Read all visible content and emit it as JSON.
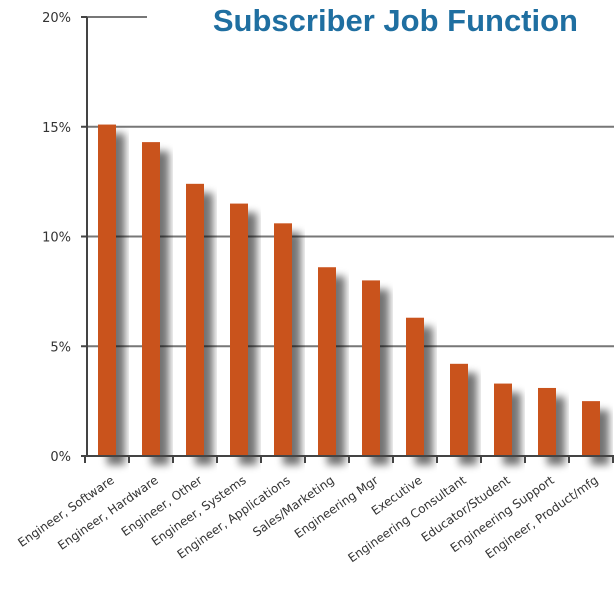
{
  "chart_data": {
    "type": "bar",
    "title": "Subscriber Job Function",
    "xlabel": "",
    "ylabel": "",
    "ylim": [
      0,
      20
    ],
    "yticks": [
      "0%",
      "5%",
      "10%",
      "15%",
      "20%"
    ],
    "ytick_values": [
      0,
      5,
      10,
      15,
      20
    ],
    "grid": true,
    "legend": "none",
    "categories": [
      "Engineer, Software",
      "Engineer, Hardware",
      "Engineer, Other",
      "Engineer, Systems",
      "Engineer, Applications",
      "Sales/Marketing",
      "Engineering Mgr",
      "Executive",
      "Engineering Consultant",
      "Educator/Student",
      "Engineering Support",
      "Engineer, Product/mfg"
    ],
    "values": [
      15.1,
      14.3,
      12.4,
      11.5,
      10.6,
      8.6,
      8.0,
      6.3,
      4.2,
      3.3,
      3.1,
      2.5
    ],
    "colors": {
      "bar": "#c9531f",
      "title": "#1f6fa1",
      "grid": "#777777",
      "axis": "#444444"
    }
  }
}
